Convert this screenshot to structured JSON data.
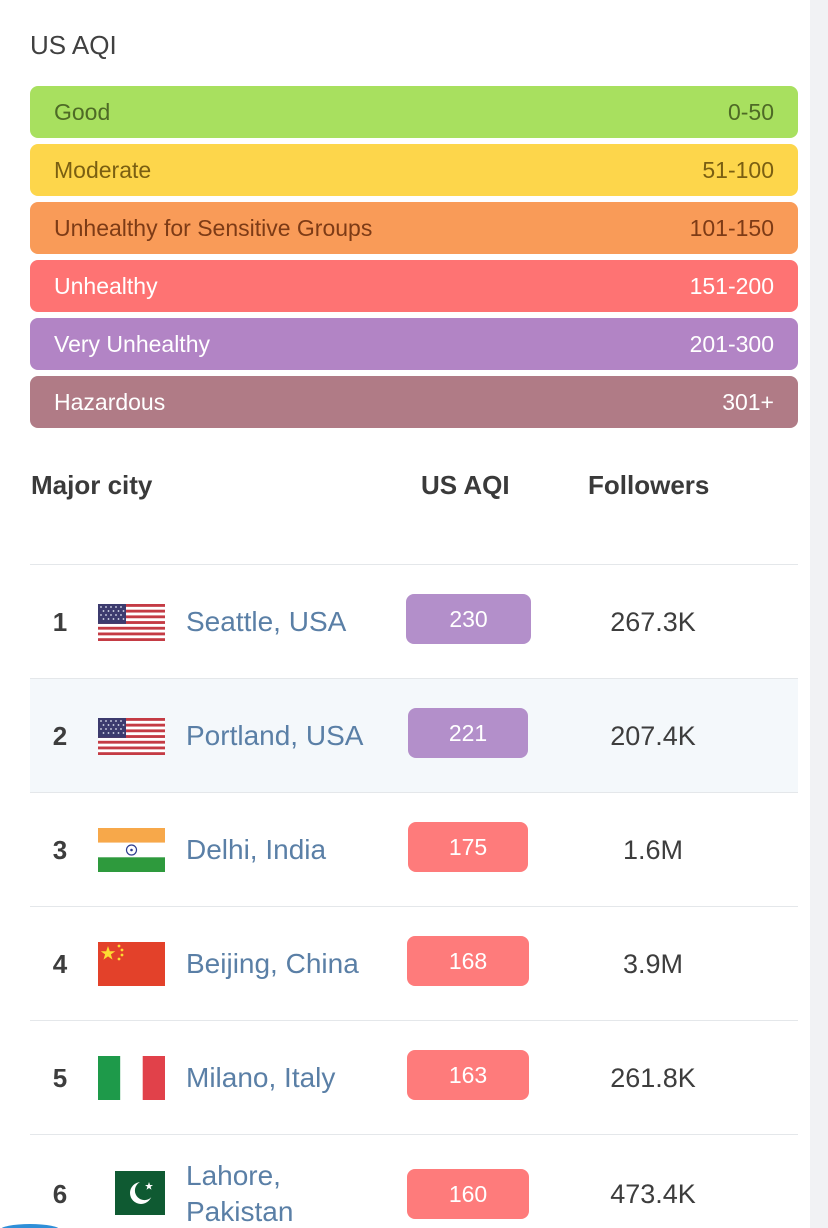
{
  "scale": {
    "title": "US AQI",
    "levels": [
      {
        "label": "Good",
        "range": "0-50",
        "bg": "#a8e05f",
        "fg": "#4e6a26"
      },
      {
        "label": "Moderate",
        "range": "51-100",
        "bg": "#fdd64b",
        "fg": "#7a5f12"
      },
      {
        "label": "Unhealthy for Sensitive Groups",
        "range": "101-150",
        "bg": "#f99b58",
        "fg": "#7d3b16"
      },
      {
        "label": "Unhealthy",
        "range": "151-200",
        "bg": "#fe7373",
        "fg": "#ffffff"
      },
      {
        "label": "Very Unhealthy",
        "range": "201-300",
        "bg": "#b284c5",
        "fg": "#ffffff"
      },
      {
        "label": "Hazardous",
        "range": "301+",
        "bg": "#b07b86",
        "fg": "#ffffff"
      }
    ]
  },
  "table": {
    "headers": {
      "city": "Major city",
      "aqi": "US AQI",
      "followers": "Followers"
    },
    "rows": [
      {
        "rank": "1",
        "flag": "usa-flag",
        "city": "Seattle, USA",
        "aqi": "230",
        "aqi_color": "#b38fca",
        "followers": "267.3K"
      },
      {
        "rank": "2",
        "flag": "usa-flag",
        "city": "Portland, USA",
        "aqi": "221",
        "aqi_color": "#b38fca",
        "followers": "207.4K"
      },
      {
        "rank": "3",
        "flag": "india-flag",
        "city": "Delhi, India",
        "aqi": "175",
        "aqi_color": "#fe7b7b",
        "followers": "1.6M"
      },
      {
        "rank": "4",
        "flag": "china-flag",
        "city": "Beijing, China",
        "aqi": "168",
        "aqi_color": "#fe7b7b",
        "followers": "3.9M"
      },
      {
        "rank": "5",
        "flag": "italy-flag",
        "city": "Milano, Italy",
        "aqi": "163",
        "aqi_color": "#fe7b7b",
        "followers": "261.8K"
      },
      {
        "rank": "6",
        "flag": "pakistan-flag",
        "city": "Lahore, Pakistan",
        "aqi": "160",
        "aqi_color": "#fe7b7b",
        "followers": "473.4K"
      }
    ]
  }
}
